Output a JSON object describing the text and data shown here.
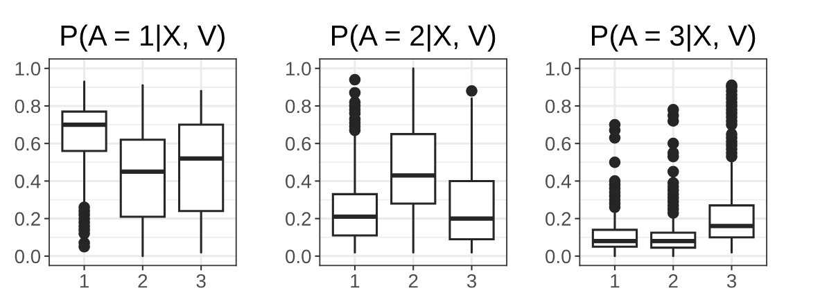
{
  "chart_data": [
    {
      "type": "box",
      "title": "P(A = 1|X, V)",
      "categories": [
        "1",
        "2",
        "3"
      ],
      "color": "#262626",
      "grid": true,
      "ylim": [
        -0.05,
        1.05
      ],
      "yticks": [
        {
          "value": 0,
          "label": "0.0"
        },
        {
          "value": 0.2,
          "label": "0.2"
        },
        {
          "value": 0.4,
          "label": "0.4"
        },
        {
          "value": 0.6,
          "label": "0.6"
        },
        {
          "value": 0.8,
          "label": "0.8"
        },
        {
          "value": 1,
          "label": "1.0"
        }
      ],
      "boxes": [
        {
          "low": 0.27,
          "q1": 0.56,
          "median": 0.7,
          "q3": 0.77,
          "high": 0.93,
          "outliers": [
            0.26,
            0.24,
            0.22,
            0.2,
            0.18,
            0.16,
            0.14,
            0.12,
            0.07,
            0.05
          ]
        },
        {
          "low": 0.0,
          "q1": 0.21,
          "median": 0.45,
          "q3": 0.62,
          "high": 0.91
        },
        {
          "low": 0.02,
          "q1": 0.24,
          "median": 0.52,
          "q3": 0.7,
          "high": 0.88
        }
      ]
    },
    {
      "type": "box",
      "title": "P(A = 2|X, V)",
      "categories": [
        "1",
        "2",
        "3"
      ],
      "color": "#262626",
      "grid": true,
      "ylim": [
        -0.05,
        1.05
      ],
      "yticks": [
        {
          "value": 0,
          "label": "0.0"
        },
        {
          "value": 0.2,
          "label": "0.2"
        },
        {
          "value": 0.4,
          "label": "0.4"
        },
        {
          "value": 0.6,
          "label": "0.6"
        },
        {
          "value": 0.8,
          "label": "0.8"
        },
        {
          "value": 1,
          "label": "1.0"
        }
      ],
      "boxes": [
        {
          "low": 0.02,
          "q1": 0.11,
          "median": 0.21,
          "q3": 0.33,
          "high": 0.65,
          "outliers": [
            0.67,
            0.69,
            0.71,
            0.73,
            0.76,
            0.78,
            0.8,
            0.82,
            0.87,
            0.94
          ]
        },
        {
          "low": 0.02,
          "q1": 0.28,
          "median": 0.43,
          "q3": 0.65,
          "high": 1.0
        },
        {
          "low": 0.02,
          "q1": 0.09,
          "median": 0.2,
          "q3": 0.4,
          "high": 0.84,
          "outliers": [
            0.88
          ]
        }
      ]
    },
    {
      "type": "box",
      "title": "P(A = 3|X, V)",
      "categories": [
        "1",
        "2",
        "3"
      ],
      "color": "#262626",
      "grid": true,
      "ylim": [
        -0.05,
        1.05
      ],
      "yticks": [
        {
          "value": 0,
          "label": "0.0"
        },
        {
          "value": 0.2,
          "label": "0.2"
        },
        {
          "value": 0.4,
          "label": "0.4"
        },
        {
          "value": 0.6,
          "label": "0.6"
        },
        {
          "value": 0.8,
          "label": "0.8"
        },
        {
          "value": 1,
          "label": "1.0"
        }
      ],
      "boxes": [
        {
          "low": 0.0,
          "q1": 0.05,
          "median": 0.08,
          "q3": 0.14,
          "high": 0.25,
          "outliers": [
            0.26,
            0.28,
            0.3,
            0.32,
            0.34,
            0.36,
            0.38,
            0.4,
            0.5,
            0.63,
            0.67,
            0.7
          ]
        },
        {
          "low": 0.0,
          "q1": 0.045,
          "median": 0.08,
          "q3": 0.125,
          "high": 0.21,
          "outliers": [
            0.23,
            0.25,
            0.27,
            0.29,
            0.31,
            0.33,
            0.35,
            0.37,
            0.39,
            0.45,
            0.53,
            0.55,
            0.6,
            0.72,
            0.75,
            0.78
          ]
        },
        {
          "low": 0.02,
          "q1": 0.1,
          "median": 0.16,
          "q3": 0.27,
          "high": 0.52,
          "outliers": [
            0.53,
            0.55,
            0.57,
            0.59,
            0.61,
            0.63,
            0.65,
            0.7,
            0.72,
            0.74,
            0.76,
            0.78,
            0.8,
            0.82,
            0.84,
            0.86,
            0.88,
            0.9,
            0.91
          ]
        }
      ]
    }
  ]
}
